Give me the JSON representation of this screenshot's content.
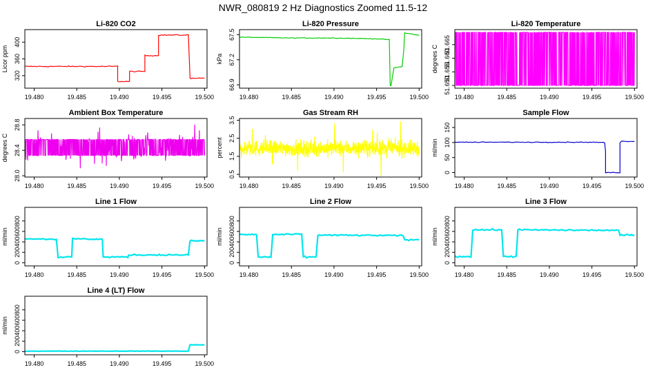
{
  "figure": {
    "title": "NWR_080819  2 Hz Diagnostics Zoomed 11.5-12"
  },
  "chart_data": [
    {
      "type": "line",
      "title": "Li-820 CO2",
      "ylabel": "Licor ppm",
      "xlabel": "",
      "xlim": [
        19.4789,
        19.5003
      ],
      "ylim": [
        290,
        430
      ],
      "xticks": [
        "19.480",
        "19.485",
        "19.490",
        "19.495",
        "19.500"
      ],
      "yticks": [
        "320",
        "360",
        "400"
      ],
      "series": [
        {
          "color": "#ff0000",
          "x": [
            19.4789,
            19.4895,
            19.4898,
            19.4898,
            19.4912,
            19.4912,
            19.493,
            19.493,
            19.4946,
            19.4946,
            19.4981,
            19.4983,
            19.4983,
            19.5
          ],
          "y": [
            342,
            342,
            343,
            306,
            306,
            330,
            330,
            368,
            368,
            417,
            417,
            317,
            314,
            314
          ]
        }
      ]
    },
    {
      "type": "line",
      "title": "Li-820 Pressure",
      "ylabel": "kPa",
      "xlabel": "",
      "xlim": [
        19.4789,
        19.5003
      ],
      "ylim": [
        66.86,
        67.56
      ],
      "xticks": [
        "19.480",
        "19.485",
        "19.490",
        "19.495",
        "19.500"
      ],
      "yticks": [
        "66.9",
        "67.2",
        "67.5"
      ],
      "series": [
        {
          "color": "#00cc00",
          "x": [
            19.4789,
            19.485,
            19.49,
            19.495,
            19.4965,
            19.4966,
            19.4967,
            19.497,
            19.497,
            19.498,
            19.4982,
            19.4983,
            19.499,
            19.5
          ],
          "y": [
            67.47,
            67.46,
            67.46,
            67.45,
            67.44,
            66.89,
            66.89,
            67.08,
            67.1,
            67.12,
            67.32,
            67.52,
            67.51,
            67.49
          ]
        }
      ]
    },
    {
      "type": "line",
      "title": "Li-820 Temperature",
      "ylabel": "degrees C",
      "xlabel": "",
      "xlim": [
        19.4789,
        19.5003
      ],
      "ylim": [
        51.649,
        51.6705
      ],
      "xticks": [
        "19.480",
        "19.485",
        "19.490",
        "19.495",
        "19.500"
      ],
      "yticks": [
        "51.650",
        "51.655",
        "51.660",
        "51.665"
      ],
      "series": [
        {
          "color": "#ff00ff",
          "x": [],
          "y": []
        }
      ]
    },
    {
      "type": "line",
      "title": "Ambient Box Temperature",
      "ylabel": "degrees C",
      "xlabel": "",
      "xlim": [
        19.4789,
        19.5003
      ],
      "ylim": [
        27.98,
        28.9
      ],
      "xticks": [
        "19.480",
        "19.485",
        "19.490",
        "19.495",
        "19.500"
      ],
      "yticks": [
        "28.0",
        "28.4",
        "28.8"
      ],
      "series": [
        {
          "color": "#ee00ee",
          "x": [],
          "y": []
        }
      ]
    },
    {
      "type": "line",
      "title": "Gas Stream RH",
      "ylabel": "percent",
      "xlabel": "",
      "xlim": [
        19.4789,
        19.5003
      ],
      "ylim": [
        0.35,
        3.6
      ],
      "xticks": [
        "19.480",
        "19.485",
        "19.490",
        "19.495",
        "19.500"
      ],
      "yticks": [
        "0.5",
        "1.5",
        "2.5",
        "3.5"
      ],
      "series": [
        {
          "color": "#ffff00",
          "x": [],
          "y": []
        }
      ]
    },
    {
      "type": "line",
      "title": "Sample Flow",
      "ylabel": "ml/min",
      "xlabel": "",
      "xlim": [
        19.4789,
        19.5003
      ],
      "ylim": [
        -15,
        180
      ],
      "xticks": [
        "19.480",
        "19.485",
        "19.490",
        "19.495",
        "19.500"
      ],
      "yticks": [
        "0",
        "50",
        "100",
        "150"
      ],
      "series": [
        {
          "color": "#0000cc",
          "x": [
            19.4789,
            19.485,
            19.49,
            19.495,
            19.4965,
            19.4966,
            19.4966,
            19.4983,
            19.4983,
            19.4985,
            19.5
          ],
          "y": [
            101,
            101,
            101,
            101,
            100,
            70,
            0,
            0,
            100,
            104,
            104
          ]
        }
      ]
    },
    {
      "type": "line",
      "title": "Line 1 Flow",
      "ylabel": "ml/min",
      "xlabel": "",
      "xlim": [
        19.4789,
        19.5003
      ],
      "ylim": [
        -60,
        1060
      ],
      "xticks": [
        "19.480",
        "19.485",
        "19.490",
        "19.495",
        "19.500"
      ],
      "yticks": [
        "0",
        "200",
        "400",
        "600",
        "800"
      ],
      "series": [
        {
          "color": "#00e5ee",
          "x": [
            19.4789,
            19.4826,
            19.4828,
            19.4844,
            19.4845,
            19.488,
            19.4881,
            19.491,
            19.4911,
            19.4981,
            19.4983,
            19.5
          ],
          "y": [
            460,
            450,
            110,
            110,
            460,
            450,
            110,
            110,
            150,
            150,
            420,
            420
          ]
        }
      ]
    },
    {
      "type": "line",
      "title": "Line 2 Flow",
      "ylabel": "ml/min",
      "xlabel": "",
      "xlim": [
        19.4789,
        19.5003
      ],
      "ylim": [
        -60,
        1060
      ],
      "xticks": [
        "19.480",
        "19.485",
        "19.490",
        "19.495",
        "19.500"
      ],
      "yticks": [
        "0",
        "200",
        "400",
        "600",
        "800"
      ],
      "series": [
        {
          "color": "#00e5ee",
          "x": [
            19.4789,
            19.4809,
            19.4811,
            19.4826,
            19.4828,
            19.4862,
            19.4864,
            19.4879,
            19.4881,
            19.4981,
            19.4983,
            19.5
          ],
          "y": [
            540,
            540,
            110,
            110,
            540,
            545,
            110,
            110,
            530,
            520,
            440,
            440
          ]
        }
      ]
    },
    {
      "type": "line",
      "title": "Line 3 Flow",
      "ylabel": "ml/min",
      "xlabel": "",
      "xlim": [
        19.4789,
        19.5003
      ],
      "ylim": [
        -60,
        1060
      ],
      "xticks": [
        "19.480",
        "19.485",
        "19.490",
        "19.495",
        "19.500"
      ],
      "yticks": [
        "0",
        "200",
        "400",
        "600",
        "800"
      ],
      "series": [
        {
          "color": "#00e5ee",
          "x": [
            19.4789,
            19.4808,
            19.481,
            19.4844,
            19.4846,
            19.4861,
            19.4863,
            19.4981,
            19.4983,
            19.5
          ],
          "y": [
            120,
            120,
            630,
            630,
            120,
            120,
            630,
            620,
            530,
            530
          ]
        }
      ]
    },
    {
      "type": "line",
      "title": "Line 4 (LT) Flow",
      "ylabel": "ml/min",
      "xlabel": "",
      "xlim": [
        19.4789,
        19.5003
      ],
      "ylim": [
        -60,
        1060
      ],
      "xticks": [
        "19.480",
        "19.485",
        "19.490",
        "19.495",
        "19.500"
      ],
      "yticks": [
        "0",
        "200",
        "400",
        "600",
        "800"
      ],
      "series": [
        {
          "color": "#00e5ee",
          "x": [
            19.4789,
            19.485,
            19.49,
            19.495,
            19.4981,
            19.4983,
            19.5
          ],
          "y": [
            10,
            10,
            10,
            10,
            10,
            130,
            130
          ]
        }
      ]
    }
  ]
}
